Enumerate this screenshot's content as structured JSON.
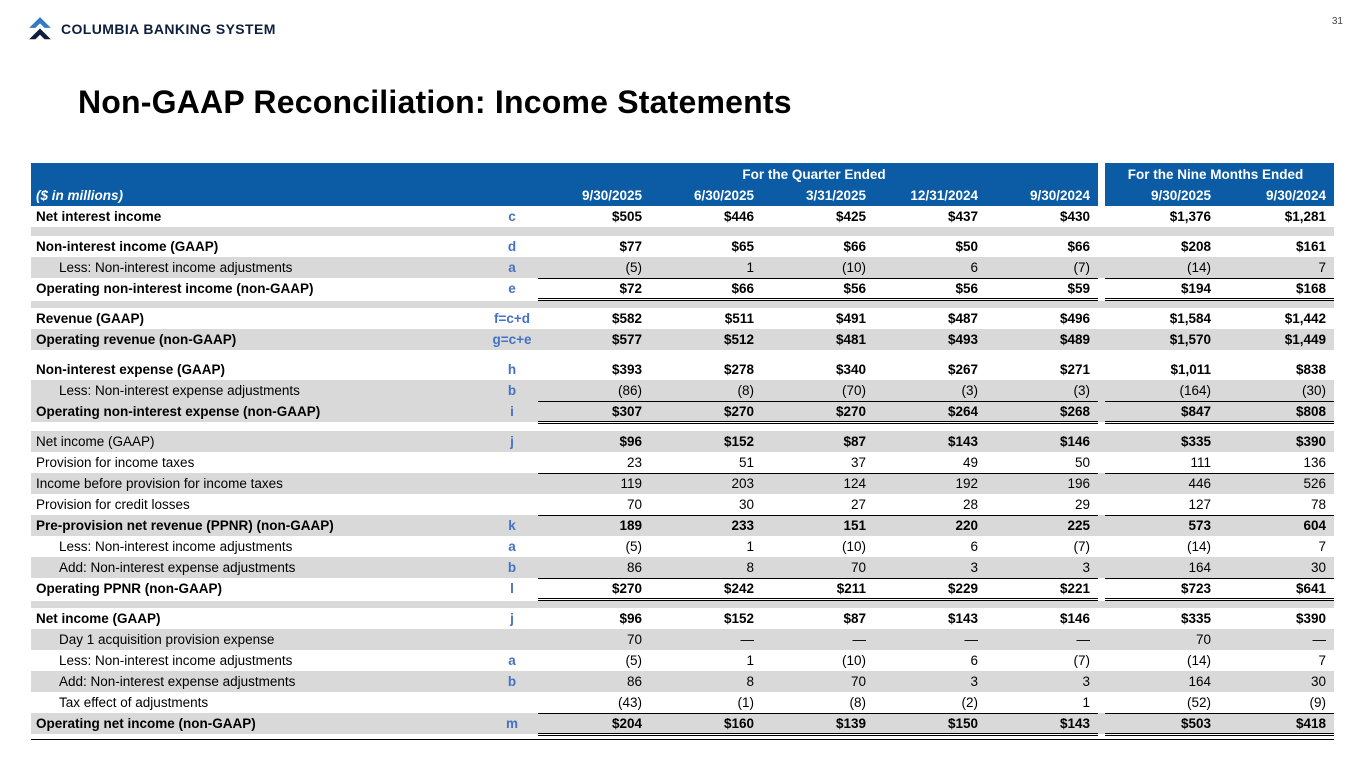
{
  "page": {
    "logo_text": "COLUMBIA BANKING SYSTEM",
    "page_number": "31",
    "title": "Non-GAAP Reconciliation: Income Statements"
  },
  "colors": {
    "header_bg": "#0b5ca5",
    "row_stripe": "#d9d9d9",
    "note_blue": "#4472c4",
    "logo_navy": "#0e1f3d"
  },
  "table": {
    "units_label": "($ in millions)",
    "group_headers": [
      {
        "label": "For the Quarter Ended"
      },
      {
        "label": "For the Nine Months Ended"
      }
    ],
    "columns": [
      "9/30/2025",
      "6/30/2025",
      "3/31/2025",
      "12/31/2024",
      "9/30/2024",
      "9/30/2025",
      "9/30/2024"
    ],
    "rows": [
      {
        "label": "Net interest income",
        "note": "c",
        "values": [
          "$505",
          "$446",
          "$425",
          "$437",
          "$430",
          "$1,376",
          "$1,281"
        ],
        "bg": "w",
        "lb": 1,
        "vb": 1
      },
      {
        "sp": 1,
        "bg": "g"
      },
      {
        "label": "Non-interest income (GAAP)",
        "note": "d",
        "values": [
          "$77",
          "$65",
          "$66",
          "$50",
          "$66",
          "$208",
          "$161"
        ],
        "bg": "w",
        "lb": 1,
        "vb": 1
      },
      {
        "label": "Less: Non-interest income adjustments",
        "note": "a",
        "values": [
          "(5)",
          "1",
          "(10)",
          "6",
          "(7)",
          "(14)",
          "7"
        ],
        "bg": "g",
        "ind": 1,
        "rule": "s"
      },
      {
        "label": "Operating non-interest income (non-GAAP)",
        "note": "e",
        "values": [
          "$72",
          "$66",
          "$56",
          "$56",
          "$59",
          "$194",
          "$168"
        ],
        "bg": "w",
        "lb": 1,
        "vb": 1,
        "rule": "d"
      },
      {
        "sp": 1,
        "bg": "g"
      },
      {
        "label": "Revenue (GAAP)",
        "note": "f=c+d",
        "values": [
          "$582",
          "$511",
          "$491",
          "$487",
          "$496",
          "$1,584",
          "$1,442"
        ],
        "bg": "w",
        "lb": 1,
        "vb": 1
      },
      {
        "label": "Operating revenue (non-GAAP)",
        "note": "g=c+e",
        "values": [
          "$577",
          "$512",
          "$481",
          "$493",
          "$489",
          "$1,570",
          "$1,449"
        ],
        "bg": "g",
        "lb": 1,
        "vb": 1
      },
      {
        "sp": 1,
        "bg": "w"
      },
      {
        "label": "Non-interest expense (GAAP)",
        "note": "h",
        "values": [
          "$393",
          "$278",
          "$340",
          "$267",
          "$271",
          "$1,011",
          "$838"
        ],
        "bg": "w",
        "lb": 1,
        "vb": 1
      },
      {
        "label": "Less: Non-interest expense adjustments",
        "note": "b",
        "values": [
          "(86)",
          "(8)",
          "(70)",
          "(3)",
          "(3)",
          "(164)",
          "(30)"
        ],
        "bg": "g",
        "ind": 1,
        "rule": "s"
      },
      {
        "label": "Operating non-interest expense (non-GAAP)",
        "note": "i",
        "values": [
          "$307",
          "$270",
          "$270",
          "$264",
          "$268",
          "$847",
          "$808"
        ],
        "bg": "g",
        "lb": 1,
        "vb": 1,
        "rule": "d"
      },
      {
        "sp": 1,
        "bg": "w"
      },
      {
        "label": "Net income (GAAP)",
        "note": "j",
        "values": [
          "$96",
          "$152",
          "$87",
          "$143",
          "$146",
          "$335",
          "$390"
        ],
        "bg": "g",
        "vb": 1
      },
      {
        "label": "Provision for income taxes",
        "note": "",
        "values": [
          "23",
          "51",
          "37",
          "49",
          "50",
          "111",
          "136"
        ],
        "bg": "w",
        "rule": "s"
      },
      {
        "label": "Income before provision for income taxes",
        "note": "",
        "values": [
          "119",
          "203",
          "124",
          "192",
          "196",
          "446",
          "526"
        ],
        "bg": "g"
      },
      {
        "label": "Provision for credit losses",
        "note": "",
        "values": [
          "70",
          "30",
          "27",
          "28",
          "29",
          "127",
          "78"
        ],
        "bg": "w",
        "rule": "s"
      },
      {
        "label": "Pre-provision net revenue (PPNR) (non-GAAP)",
        "note": "k",
        "values": [
          "189",
          "233",
          "151",
          "220",
          "225",
          "573",
          "604"
        ],
        "bg": "g",
        "lb": 1,
        "vb": 1
      },
      {
        "label": "Less: Non-interest income adjustments",
        "note": "a",
        "values": [
          "(5)",
          "1",
          "(10)",
          "6",
          "(7)",
          "(14)",
          "7"
        ],
        "bg": "w",
        "ind": 1
      },
      {
        "label": "Add: Non-interest expense adjustments",
        "note": "b",
        "values": [
          "86",
          "8",
          "70",
          "3",
          "3",
          "164",
          "30"
        ],
        "bg": "g",
        "ind": 1,
        "rule": "s"
      },
      {
        "label": "Operating PPNR (non-GAAP)",
        "note": "l",
        "values": [
          "$270",
          "$242",
          "$211",
          "$229",
          "$221",
          "$723",
          "$641"
        ],
        "bg": "w",
        "lb": 1,
        "vb": 1,
        "rule": "d"
      },
      {
        "sp": 1,
        "bg": "g"
      },
      {
        "label": "Net income (GAAP)",
        "note": "j",
        "values": [
          "$96",
          "$152",
          "$87",
          "$143",
          "$146",
          "$335",
          "$390"
        ],
        "bg": "w",
        "lb": 1,
        "vb": 1
      },
      {
        "label": "Day 1 acquisition provision expense",
        "note": "",
        "values": [
          "70",
          "—",
          "—",
          "—",
          "—",
          "70",
          "—"
        ],
        "bg": "g",
        "ind": 1
      },
      {
        "label": "Less: Non-interest income adjustments",
        "note": "a",
        "values": [
          "(5)",
          "1",
          "(10)",
          "6",
          "(7)",
          "(14)",
          "7"
        ],
        "bg": "w",
        "ind": 1
      },
      {
        "label": "Add: Non-interest expense adjustments",
        "note": "b",
        "values": [
          "86",
          "8",
          "70",
          "3",
          "3",
          "164",
          "30"
        ],
        "bg": "g",
        "ind": 1
      },
      {
        "label": "Tax effect of adjustments",
        "note": "",
        "values": [
          "(43)",
          "(1)",
          "(8)",
          "(2)",
          "1",
          "(52)",
          "(9)"
        ],
        "bg": "w",
        "ind": 1,
        "rule": "s"
      },
      {
        "label": "Operating net income (non-GAAP)",
        "note": "m",
        "values": [
          "$204",
          "$160",
          "$139",
          "$150",
          "$143",
          "$503",
          "$418"
        ],
        "bg": "g",
        "lb": 1,
        "vb": 1,
        "rule": "d"
      }
    ]
  }
}
